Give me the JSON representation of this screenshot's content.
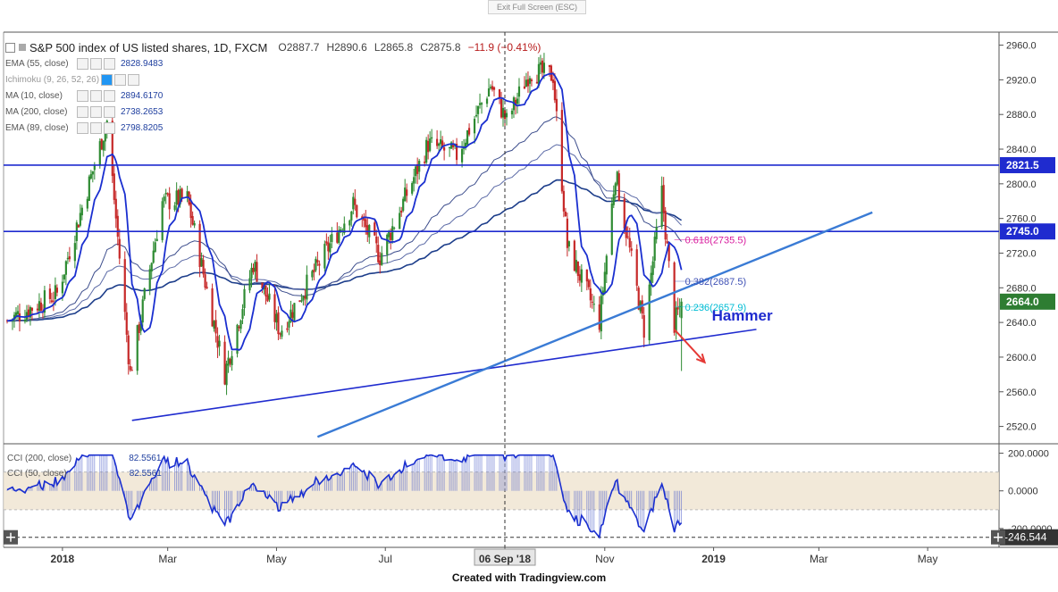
{
  "window": {
    "exit_fullscreen": "Exit Full Screen (ESC)"
  },
  "header": {
    "title": "S&P 500 index of US listed shares, 1D, FXCM",
    "open": "O2887.7",
    "high": "H2890.6",
    "low": "L2865.8",
    "close": "C2875.8",
    "change": "−11.9 (−0.41%)"
  },
  "indicators": [
    {
      "name": "EMA (55, close)",
      "value": "2828.9483",
      "color": "#1f3f9f"
    },
    {
      "name": "Ichimoku (9, 26, 52, 26)",
      "value": "",
      "color": "#2196f3"
    },
    {
      "name": "MA (10, close)",
      "value": "2894.6170",
      "color": "#1f3f9f"
    },
    {
      "name": "MA (200, close)",
      "value": "2738.2653",
      "color": "#1f3f9f"
    },
    {
      "name": "EMA (89, close)",
      "value": "2798.8205",
      "color": "#1f3f9f"
    }
  ],
  "cci": {
    "label1": "CCI (200, close)",
    "value1": "82.5561",
    "label2": "CCI (50, close)",
    "value2": "82.5561",
    "axis_labels": [
      "200.0000",
      "0.0000",
      "-200.0000"
    ],
    "last_value": "-246.544",
    "level_band": [
      -100,
      100
    ]
  },
  "footer": {
    "credit": "Created with Tradingview.com"
  },
  "colors": {
    "up": "#2e8b32",
    "down": "#c62828",
    "ma_fast": "#1a2fd0",
    "ma_slow": "#1c3d8a",
    "trend_light": "#3a7bd5",
    "horizontal": "#1f2bcf",
    "fib_618": "#d81b9e",
    "fib_382": "#3f51b5",
    "fib_236": "#00bcd4",
    "arrow": "#e53935",
    "annotation": "#1f2bcf",
    "cci_line": "#1a2fd0",
    "cci_band": "#efe4d0"
  },
  "chart_data": {
    "type": "candlestick",
    "title": "S&P 500 index of US listed shares, 1D, FXCM",
    "y_axis_ticks": [
      2520.0,
      2560.0,
      2600.0,
      2640.0,
      2680.0,
      2720.0,
      2760.0,
      2800.0,
      2840.0,
      2880.0,
      2920.0,
      2960.0
    ],
    "ylim": [
      2500,
      2975
    ],
    "x_axis_labels": [
      "2018",
      "Mar",
      "May",
      "Jul",
      "06 Sep '18",
      "Nov",
      "2019",
      "Mar",
      "May"
    ],
    "x_axis_label_dates": [
      "2018-01-01",
      "2018-03-01",
      "2018-05-01",
      "2018-07-01",
      "2018-09-06",
      "2018-11-01",
      "2019-01-01",
      "2019-03-01",
      "2019-05-01"
    ],
    "xlim": [
      "2017-11-29",
      "2019-06-10"
    ],
    "crosshair_date": "2018-09-06",
    "horizontal_levels": [
      {
        "price": 2821.5,
        "label": "2821.5"
      },
      {
        "price": 2745.0,
        "label": "2745.0"
      }
    ],
    "price_label": {
      "price": 2664.0,
      "label": "2664.0"
    },
    "fibonacci": [
      {
        "ratio": "0.618",
        "price": 2735.5,
        "label": "0.618(2735.5)"
      },
      {
        "ratio": "0.382",
        "price": 2687.5,
        "label": "0.382(2687.5)"
      },
      {
        "ratio": "0.236",
        "price": 2657.9,
        "label": "0.236(2657.9)"
      }
    ],
    "trendlines": [
      {
        "kind": "support",
        "from": [
          "2018-02-09",
          2527
        ],
        "to": [
          "2019-01-25",
          2632
        ]
      },
      {
        "kind": "rising",
        "from": [
          "2018-05-24",
          2508
        ],
        "to": [
          "2019-03-31",
          2767
        ]
      }
    ],
    "annotation": {
      "text": "Hammer",
      "date": "2018-12-31",
      "price": 2638
    },
    "arrow": {
      "from": [
        "2018-12-10",
        2632
      ],
      "to": [
        "2018-12-27",
        2594
      ]
    },
    "key_prices": [
      {
        "date": "2017-12-01",
        "close": 2642
      },
      {
        "date": "2017-12-29",
        "close": 2673
      },
      {
        "date": "2018-01-26",
        "close": 2872
      },
      {
        "date": "2018-02-08",
        "close": 2581
      },
      {
        "date": "2018-02-26",
        "close": 2779
      },
      {
        "date": "2018-03-12",
        "close": 2783
      },
      {
        "date": "2018-04-02",
        "close": 2581
      },
      {
        "date": "2018-04-18",
        "close": 2708
      },
      {
        "date": "2018-05-03",
        "close": 2630
      },
      {
        "date": "2018-06-13",
        "close": 2776
      },
      {
        "date": "2018-06-28",
        "close": 2716
      },
      {
        "date": "2018-07-25",
        "close": 2846
      },
      {
        "date": "2018-08-10",
        "close": 2833
      },
      {
        "date": "2018-08-29",
        "close": 2914
      },
      {
        "date": "2018-09-07",
        "close": 2872
      },
      {
        "date": "2018-09-20",
        "close": 2930
      },
      {
        "date": "2018-10-03",
        "close": 2925
      },
      {
        "date": "2018-10-11",
        "close": 2728
      },
      {
        "date": "2018-10-29",
        "close": 2641
      },
      {
        "date": "2018-11-07",
        "close": 2813
      },
      {
        "date": "2018-11-23",
        "close": 2632
      },
      {
        "date": "2018-12-03",
        "close": 2790
      },
      {
        "date": "2018-12-10",
        "close": 2638
      },
      {
        "date": "2018-12-14",
        "close": 2664
      }
    ]
  }
}
